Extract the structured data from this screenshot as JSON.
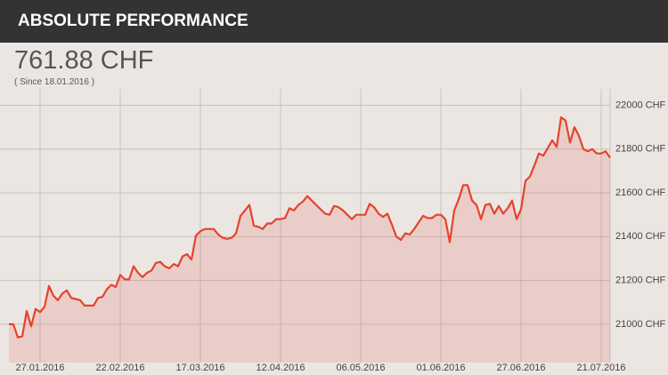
{
  "header": {
    "title": "ABSOLUTE PERFORMANCE"
  },
  "summary": {
    "value": "761.88 CHF",
    "since": "( Since 18.01.2016 )"
  },
  "chart_data": {
    "type": "area",
    "color": "#e5432c",
    "grid": true,
    "categories": [
      null,
      null,
      null,
      null,
      null,
      null,
      null,
      "27.01.2016",
      null,
      null,
      null,
      null,
      null,
      null,
      null,
      null,
      null,
      null,
      null,
      null,
      null,
      null,
      null,
      null,
      null,
      "22.02.2016",
      null,
      null,
      null,
      null,
      null,
      null,
      null,
      null,
      null,
      null,
      null,
      null,
      null,
      null,
      null,
      null,
      null,
      "17.03.2016",
      null,
      null,
      null,
      null,
      null,
      null,
      null,
      null,
      null,
      null,
      null,
      null,
      null,
      null,
      null,
      null,
      null,
      "12.04.2016",
      null,
      null,
      null,
      null,
      null,
      null,
      null,
      null,
      null,
      null,
      null,
      null,
      null,
      null,
      null,
      null,
      null,
      "06.05.2016",
      null,
      null,
      null,
      null,
      null,
      null,
      null,
      null,
      null,
      null,
      null,
      null,
      null,
      null,
      null,
      null,
      null,
      "01.06.2016",
      null,
      null,
      null,
      null,
      null,
      null,
      null,
      null,
      null,
      null,
      null,
      null,
      null,
      null,
      null,
      null,
      null,
      "27.06.2016",
      null,
      null,
      null,
      null,
      null,
      null,
      null,
      null,
      null,
      null,
      null,
      null,
      null,
      null,
      null,
      null,
      null,
      "21.07.2016",
      null,
      null
    ],
    "values": [
      21000,
      21000,
      20940,
      20945,
      21060,
      20990,
      21070,
      21055,
      21080,
      21175,
      21130,
      21110,
      21140,
      21155,
      21120,
      21115,
      21110,
      21085,
      21085,
      21085,
      21120,
      21125,
      21160,
      21180,
      21170,
      21225,
      21205,
      21205,
      21265,
      21235,
      21215,
      21235,
      21245,
      21280,
      21285,
      21265,
      21255,
      21275,
      21265,
      21310,
      21320,
      21295,
      21405,
      21425,
      21435,
      21435,
      21435,
      21410,
      21395,
      21390,
      21395,
      21415,
      21495,
      21520,
      21545,
      21450,
      21445,
      21435,
      21460,
      21460,
      21480,
      21480,
      21485,
      21530,
      21520,
      21545,
      21560,
      21585,
      21565,
      21545,
      21525,
      21505,
      21500,
      21540,
      21535,
      21520,
      21500,
      21480,
      21500,
      21500,
      21500,
      21550,
      21535,
      21505,
      21490,
      21505,
      21455,
      21400,
      21385,
      21415,
      21410,
      21435,
      21465,
      21495,
      21485,
      21485,
      21500,
      21500,
      21480,
      21375,
      21520,
      21570,
      21635,
      21635,
      21565,
      21545,
      21480,
      21545,
      21550,
      21505,
      21540,
      21505,
      21530,
      21565,
      21480,
      21525,
      21655,
      21675,
      21725,
      21780,
      21770,
      21805,
      21840,
      21810,
      21945,
      21930,
      21830,
      21900,
      21860,
      21800,
      21790,
      21800,
      21780,
      21780,
      21790,
      21760
    ],
    "ylim": [
      20825,
      22075
    ],
    "yticks": [
      {
        "value": 21000,
        "label": "21000 CHF"
      },
      {
        "value": 21200,
        "label": "21200 CHF"
      },
      {
        "value": 21400,
        "label": "21400 CHF"
      },
      {
        "value": 21600,
        "label": "21600 CHF"
      },
      {
        "value": 21800,
        "label": "21800 CHF"
      },
      {
        "value": 22000,
        "label": "22000 CHF"
      }
    ]
  }
}
